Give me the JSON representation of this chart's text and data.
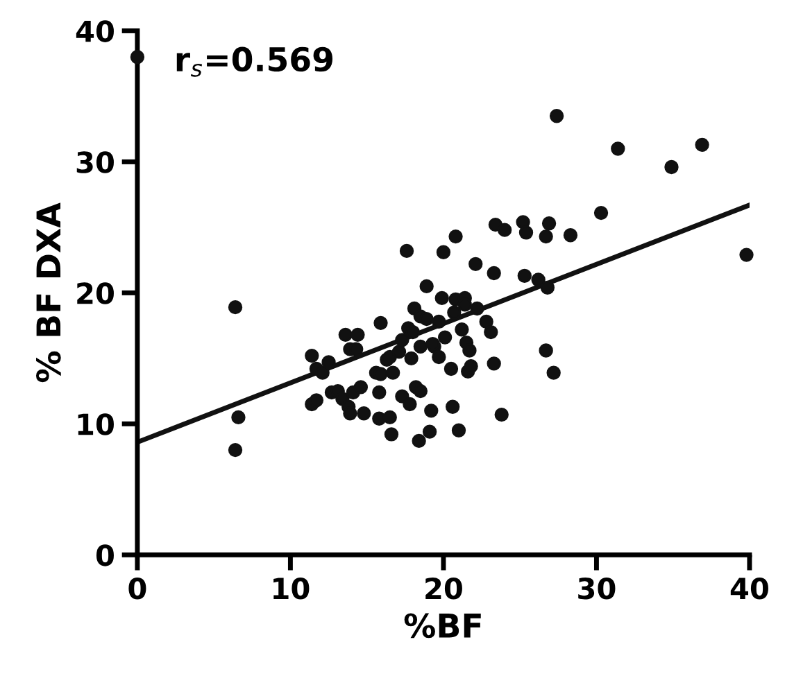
{
  "chart_data": {
    "type": "scatter",
    "xlabel": "%BF",
    "ylabel": "% BF DXA",
    "annotations": [
      "r$_{s}$=0.569"
    ],
    "xlim": [
      0,
      40
    ],
    "ylim": [
      0,
      40
    ],
    "xticks": [
      0,
      10,
      20,
      30,
      40
    ],
    "yticks": [
      0,
      10,
      20,
      30,
      40
    ],
    "grid": false,
    "series": [
      {
        "marker": "circle",
        "color": "#111111",
        "x": [
          0,
          6.4,
          6.6,
          6.4,
          11.4,
          11.7,
          12.1,
          12.5,
          11.4,
          11.7,
          12.7,
          13.1,
          13.4,
          13.8,
          13.9,
          14.1,
          14.6,
          14.8,
          13.6,
          14.4,
          13.9,
          14.3,
          15.9,
          15.8,
          15.6,
          15.9,
          16.7,
          16.3,
          16.5,
          15.8,
          16.5,
          16.6,
          17.3,
          17.8,
          18.2,
          18.5,
          18.4,
          19.1,
          19.2,
          17.9,
          17.1,
          17.3,
          17.7,
          18.0,
          18.1,
          18.5,
          18.9,
          18.5,
          18.9,
          19.4,
          19.7,
          19.9,
          20.1,
          20.5,
          20.6,
          20.8,
          20.0,
          17.6,
          27.4,
          31.4,
          36.9,
          34.9,
          30.3,
          39.8,
          23.4,
          24.0,
          25.2,
          25.4,
          26.9,
          26.7,
          28.3,
          20.8,
          22.1,
          23.3,
          25.3,
          26.2,
          26.8,
          21.4,
          21.4,
          20.7,
          22.2,
          19.7,
          22.8,
          23.1,
          21.2,
          21.5,
          21.7,
          19.3,
          21.6,
          21.8,
          23.3,
          26.7,
          27.2,
          21.0,
          23.8
        ],
        "values": [
          38,
          18.9,
          10.5,
          8.0,
          15.2,
          14.2,
          13.9,
          14.7,
          11.5,
          11.8,
          12.4,
          12.5,
          11.9,
          11.3,
          10.8,
          12.4,
          12.8,
          10.8,
          16.8,
          16.8,
          15.7,
          15.7,
          17.7,
          12.4,
          13.9,
          13.8,
          13.9,
          14.9,
          15.1,
          10.4,
          10.5,
          9.2,
          12.1,
          11.5,
          12.8,
          12.5,
          8.7,
          9.4,
          11.0,
          15.0,
          15.5,
          16.4,
          17.3,
          17.0,
          18.8,
          18.2,
          18.0,
          15.9,
          20.5,
          15.9,
          15.1,
          19.6,
          16.6,
          14.2,
          11.3,
          19.5,
          23.1,
          23.2,
          33.5,
          31.0,
          31.3,
          29.6,
          26.1,
          22.9,
          25.2,
          24.8,
          25.4,
          24.6,
          25.3,
          24.3,
          24.4,
          24.3,
          22.2,
          21.5,
          21.3,
          21.0,
          20.4,
          19.6,
          19.1,
          18.5,
          18.8,
          17.8,
          17.8,
          17.0,
          17.2,
          16.2,
          15.6,
          16.1,
          14.0,
          14.4,
          14.6,
          15.6,
          13.9,
          9.5,
          10.7
        ]
      },
      {
        "type": "line",
        "color": "#111111",
        "x": [
          0,
          40
        ],
        "values": [
          8.6,
          26.7
        ],
        "line_style": "solid",
        "marker": "none"
      }
    ]
  }
}
